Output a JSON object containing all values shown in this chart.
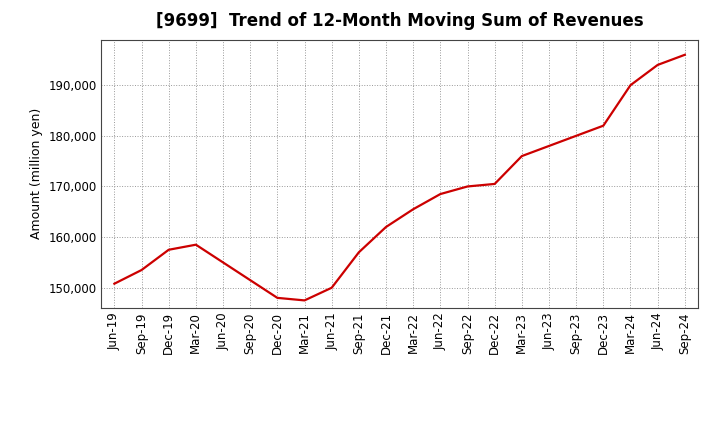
{
  "title": "[9699]  Trend of 12-Month Moving Sum of Revenues",
  "ylabel": "Amount (million yen)",
  "line_color": "#cc0000",
  "background_color": "#ffffff",
  "plot_bg_color": "#ffffff",
  "grid_color": "#999999",
  "x_labels": [
    "Jun-19",
    "Sep-19",
    "Dec-19",
    "Mar-20",
    "Jun-20",
    "Sep-20",
    "Dec-20",
    "Mar-21",
    "Jun-21",
    "Sep-21",
    "Dec-21",
    "Mar-22",
    "Jun-22",
    "Sep-22",
    "Dec-22",
    "Mar-23",
    "Jun-23",
    "Sep-23",
    "Dec-23",
    "Mar-24",
    "Jun-24",
    "Sep-24"
  ],
  "y_values": [
    150800,
    153500,
    157500,
    158500,
    155000,
    151500,
    148000,
    147500,
    150000,
    157000,
    162000,
    165500,
    168500,
    170000,
    170500,
    176000,
    178000,
    180000,
    182000,
    190000,
    194000,
    196000
  ],
  "ylim_min": 146000,
  "ylim_max": 199000,
  "ytick_values": [
    150000,
    160000,
    170000,
    180000,
    190000
  ],
  "title_fontsize": 12,
  "axis_label_fontsize": 9,
  "tick_fontsize": 8.5
}
